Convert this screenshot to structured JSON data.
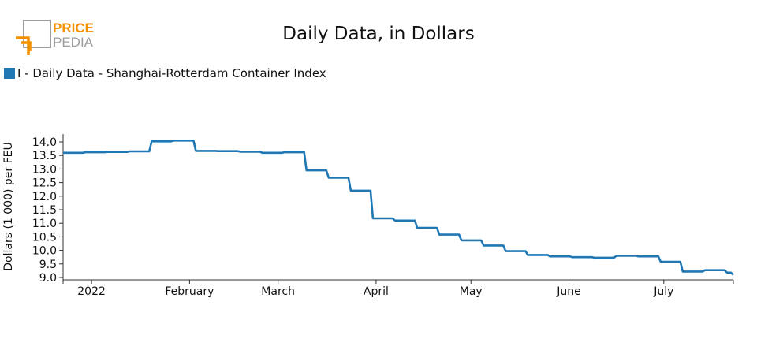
{
  "brand": {
    "logo_top": "PRICE",
    "logo_bottom": "PEDIA",
    "color_orange": "#f39200",
    "color_gray": "#9d9d9c"
  },
  "chart_data": {
    "type": "line",
    "title": "Daily Data, in Dollars",
    "xlabel": "",
    "ylabel": "Dollars (1 000) per FEU",
    "ylim": [
      9.0,
      14.0
    ],
    "yticks": [
      9.0,
      9.5,
      10.0,
      10.5,
      11.0,
      11.5,
      12.0,
      12.5,
      13.0,
      13.5,
      14.0
    ],
    "xtick_labels": [
      {
        "label": "2022",
        "date": "2022-01-01"
      },
      {
        "label": "February",
        "date": "2022-02-01"
      },
      {
        "label": "March",
        "date": "2022-03-01"
      },
      {
        "label": "April",
        "date": "2022-04-01"
      },
      {
        "label": "May",
        "date": "2022-05-01"
      },
      {
        "label": "June",
        "date": "2022-06-01"
      },
      {
        "label": "July",
        "date": "2022-07-01"
      }
    ],
    "x_range": [
      "2021-12-23",
      "2022-07-23"
    ],
    "legend": "top-left",
    "grid": false,
    "series": [
      {
        "name": "I - Daily Data - Shanghai-Rotterdam Container Index",
        "color": "#1f77b4",
        "step": true,
        "x": [
          "2021-12-23",
          "2021-12-30",
          "2022-01-06",
          "2022-01-13",
          "2022-01-20",
          "2022-01-27",
          "2022-02-03",
          "2022-02-10",
          "2022-02-17",
          "2022-02-24",
          "2022-03-03",
          "2022-03-10",
          "2022-03-17",
          "2022-03-24",
          "2022-03-31",
          "2022-04-07",
          "2022-04-14",
          "2022-04-21",
          "2022-04-28",
          "2022-05-05",
          "2022-05-12",
          "2022-05-19",
          "2022-05-26",
          "2022-06-02",
          "2022-06-09",
          "2022-06-16",
          "2022-06-23",
          "2022-06-30",
          "2022-07-07",
          "2022-07-14",
          "2022-07-21",
          "2022-07-23"
        ],
        "y": [
          13.6,
          13.62,
          13.63,
          13.65,
          14.02,
          14.05,
          13.67,
          13.66,
          13.64,
          13.6,
          13.62,
          12.95,
          12.68,
          12.2,
          11.18,
          11.1,
          10.83,
          10.58,
          10.37,
          10.18,
          9.97,
          9.83,
          9.78,
          9.75,
          9.73,
          9.8,
          9.78,
          9.58,
          9.22,
          9.27,
          9.18,
          9.1
        ]
      }
    ]
  }
}
